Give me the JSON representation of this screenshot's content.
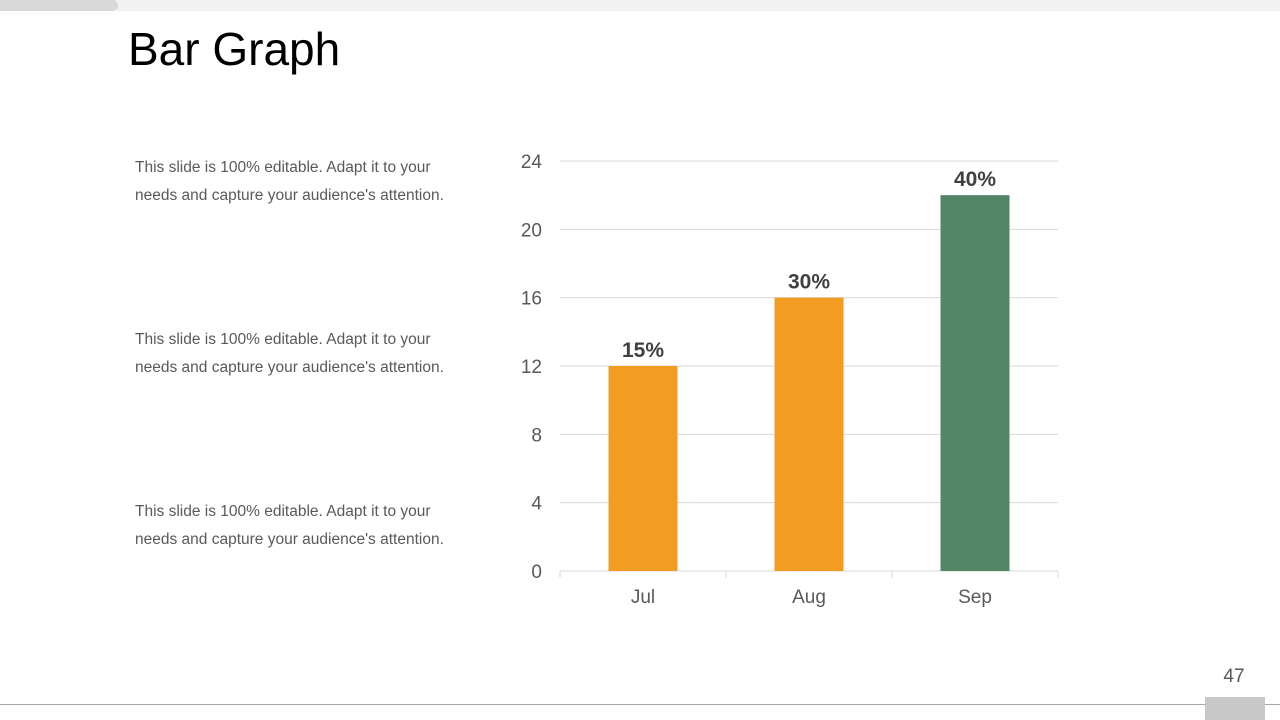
{
  "slide": {
    "title": "Bar Graph",
    "page_number": "47",
    "descriptions": [
      "This slide is 100% editable. Adapt it to your needs and capture your audience's attention.",
      "This slide is 100% editable. Adapt it to your needs and capture your audience's attention.",
      "This slide is 100% editable. Adapt it to your needs and capture your audience's attention."
    ]
  },
  "chart_data": {
    "type": "bar",
    "categories": [
      "Jul",
      "Aug",
      "Sep"
    ],
    "values": [
      12,
      16,
      22
    ],
    "data_labels": [
      "15%",
      "30%",
      "40%"
    ],
    "colors": [
      "#f29c22",
      "#f29c22",
      "#548566"
    ],
    "ylim": [
      0,
      24
    ],
    "yticks": [
      0,
      4,
      8,
      12,
      16,
      20,
      24
    ],
    "grid": true,
    "legend": "none",
    "title": "",
    "xlabel": "",
    "ylabel": ""
  },
  "theme": {
    "gridline": "#d9d9d9",
    "tick_text": "#595959",
    "label_text": "#404040"
  }
}
